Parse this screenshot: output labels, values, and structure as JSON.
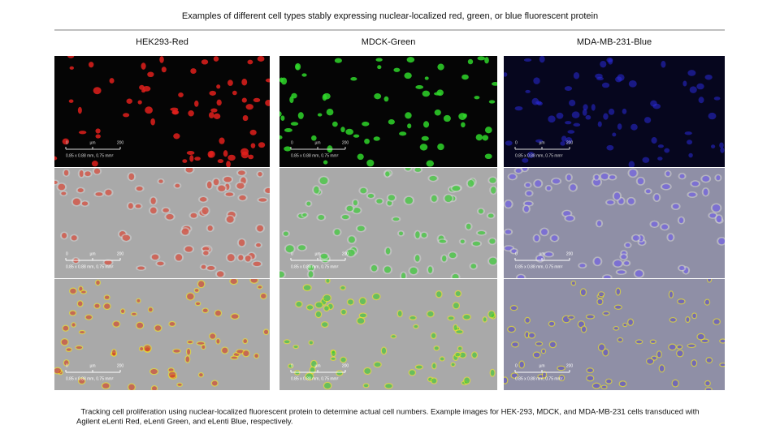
{
  "header": {
    "title": "Examples of different cell types stably expressing nuclear-localized red, green, or blue fluorescent protein"
  },
  "columns": [
    {
      "label": "HEK293-Red"
    },
    {
      "label": "MDCK-Green"
    },
    {
      "label": "MDA-MB-231-Blue"
    }
  ],
  "scale_bar": {
    "start": "0",
    "unit": "µm",
    "end": "200",
    "area": "0.85 x 0.88 mm, 0.75 mm²"
  },
  "caption": {
    "lines": [
      "Tracking cell proliferation using nuclear-localized fluorescent protein to determine actual cell numbers. Example images for HEK-293, MDCK, and MDA-MB-231 cells transduced with",
      "Agilent eLenti Red, eLenti Green, and eLenti Blue, respectively."
    ]
  }
}
